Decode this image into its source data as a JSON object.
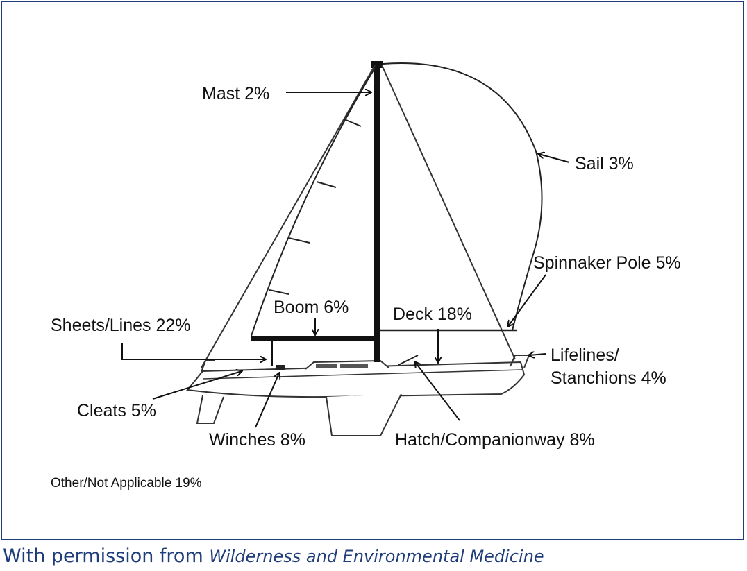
{
  "labels": {
    "mast": "Mast 2%",
    "sail": "Sail 3%",
    "spinnaker_pole": "Spinnaker Pole 5%",
    "boom": "Boom 6%",
    "deck": "Deck 18%",
    "sheets_lines": "Sheets/Lines 22%",
    "lifelines_line1": "Lifelines/",
    "lifelines_line2": "Stanchions 4%",
    "cleats": "Cleats 5%",
    "winches": "Winches 8%",
    "hatch": "Hatch/Companionway 8%",
    "other": "Other/Not Applicable 19%"
  },
  "caption": {
    "prefix": "With permission from ",
    "source": "Wilderness and Environmental Medicine"
  },
  "colors": {
    "frame": "#1f3d7a",
    "caption": "#1f3d7a",
    "ink": "#111111"
  }
}
